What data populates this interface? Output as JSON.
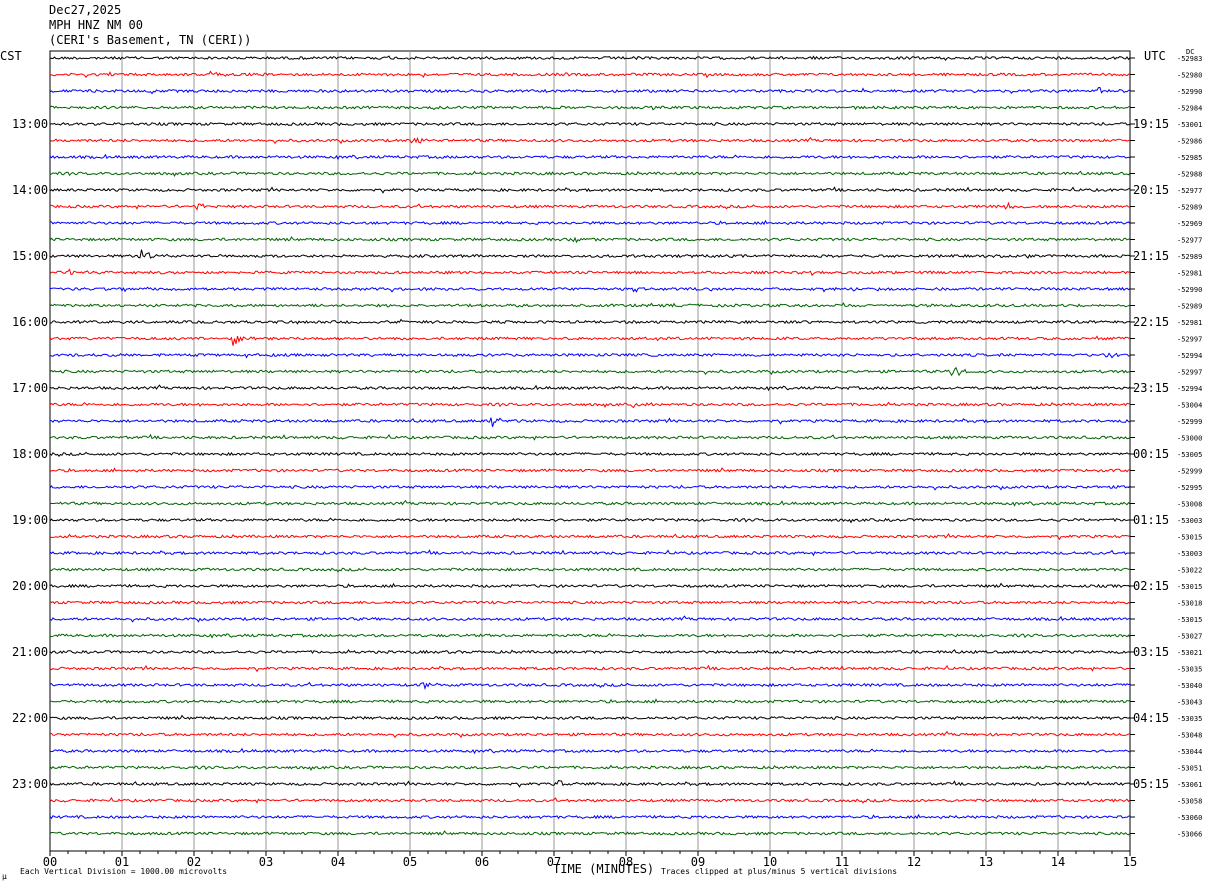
{
  "header": {
    "date": "Dec27,2025",
    "station": "MPH HNZ NM 00",
    "location": "(CERI's Basement, TN (CERI))"
  },
  "left_axis_label": "CST",
  "right_axis_label": "UTC",
  "dc_label": "DC",
  "footer": {
    "scale_note": "Each Vertical Division = 1000.00 microvolts",
    "clip_note": "Traces clipped at plus/minus 5 vertical divisions",
    "scale_mark": "μ"
  },
  "colors": {
    "trace_cycle": [
      "#000000",
      "#ff0000",
      "#0000ff",
      "#006400"
    ],
    "grid": "#9a9a9a"
  },
  "chart_data": {
    "type": "line",
    "title": "MPH HNZ NM 00",
    "xlabel": "TIME (MINUTES)",
    "ylabel": "",
    "x_ticks": [
      "00",
      "01",
      "02",
      "03",
      "04",
      "05",
      "06",
      "07",
      "08",
      "09",
      "10",
      "11",
      "12",
      "13",
      "14",
      "15"
    ],
    "xlim": [
      0,
      15
    ],
    "left_hour_labels": [
      "13:00",
      "14:00",
      "15:00",
      "16:00",
      "17:00",
      "18:00",
      "19:00",
      "20:00",
      "21:00",
      "22:00",
      "23:00"
    ],
    "right_hour_labels": [
      "19:15",
      "20:15",
      "21:15",
      "22:15",
      "23:15",
      "00:15",
      "01:15",
      "02:15",
      "03:15",
      "04:15",
      "05:15"
    ],
    "dc_offsets": [
      "-52983",
      "-52980",
      "-52990",
      "-52984",
      "-53001",
      "-52986",
      "-52985",
      "-52988",
      "-52977",
      "-52989",
      "-52969",
      "-52977",
      "-52989",
      "-52981",
      "-52990",
      "-52989",
      "-52981",
      "-52997",
      "-52994",
      "-52997",
      "-52994",
      "-53004",
      "-52999",
      "-53000",
      "-53005",
      "-52999",
      "-52995",
      "-53008",
      "-53003",
      "-53015",
      "-53003",
      "-53022",
      "-53015",
      "-53018",
      "-53015",
      "-53027",
      "-53021",
      "-53035",
      "-53040",
      "-53043",
      "-53035",
      "-53048",
      "-53044",
      "-53051",
      "-53061",
      "-53058",
      "-53060",
      "-53066"
    ],
    "traces": 48,
    "events": [
      {
        "trace": 1,
        "minute": 2.25,
        "amp": 3
      },
      {
        "trace": 2,
        "minute": 14.6,
        "amp": 3
      },
      {
        "trace": 5,
        "minute": 5.05,
        "amp": 5
      },
      {
        "trace": 9,
        "minute": 2.05,
        "amp": 4
      },
      {
        "trace": 9,
        "minute": 13.3,
        "amp": 3
      },
      {
        "trace": 11,
        "minute": 7.3,
        "amp": 2.5
      },
      {
        "trace": 12,
        "minute": 1.25,
        "amp": 8
      },
      {
        "trace": 13,
        "minute": 0.3,
        "amp": 3
      },
      {
        "trace": 17,
        "minute": 2.55,
        "amp": 8
      },
      {
        "trace": 18,
        "minute": 14.7,
        "amp": 3
      },
      {
        "trace": 19,
        "minute": 12.55,
        "amp": 5
      },
      {
        "trace": 21,
        "minute": 8.05,
        "amp": 4
      },
      {
        "trace": 22,
        "minute": 6.15,
        "amp": 5
      },
      {
        "trace": 38,
        "minute": 5.2,
        "amp": 5
      },
      {
        "trace": 44,
        "minute": 7.1,
        "amp": 3
      }
    ]
  }
}
